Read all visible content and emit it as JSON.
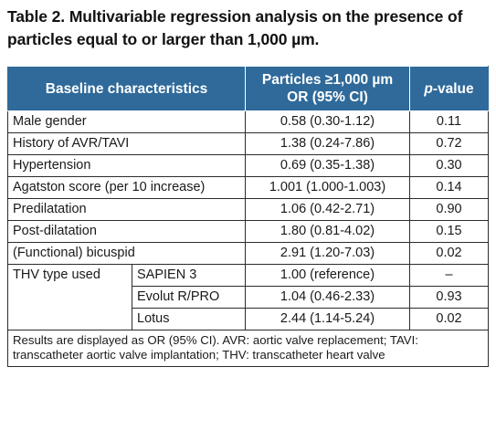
{
  "caption": "Table 2. Multivariable regression analysis on the presence of particles equal to or larger than 1,000 µm.",
  "header": {
    "col1": "Baseline characteristics",
    "col2_line1": "Particles ≥1,000 µm",
    "col2_line2": "OR (95% CI)",
    "col3_italic": "p",
    "col3_rest": "-value"
  },
  "rows": [
    {
      "label": "Male gender",
      "or": "0.58 (0.30-1.12)",
      "p": "0.11"
    },
    {
      "label": "History of AVR/TAVI",
      "or": "1.38 (0.24-7.86)",
      "p": "0.72"
    },
    {
      "label": "Hypertension",
      "or": "0.69 (0.35-1.38)",
      "p": "0.30"
    },
    {
      "label": "Agatston score (per 10 increase)",
      "or": "1.001 (1.000-1.003)",
      "p": "0.14"
    },
    {
      "label": "Predilatation",
      "or": "1.06 (0.42-2.71)",
      "p": "0.90"
    },
    {
      "label": "Post-dilatation",
      "or": "1.80 (0.81-4.02)",
      "p": "0.15"
    },
    {
      "label": "(Functional) bicuspid",
      "or": "2.91 (1.20-7.03)",
      "p": "0.02"
    }
  ],
  "thv": {
    "label": "THV type used",
    "items": [
      {
        "label": "SAPIEN 3",
        "or": "1.00 (reference)",
        "p": "–"
      },
      {
        "label": "Evolut R/PRO",
        "or": "1.04 (0.46-2.33)",
        "p": "0.93"
      },
      {
        "label": "Lotus",
        "or": "2.44 (1.14-5.24)",
        "p": "0.02"
      }
    ]
  },
  "footnote": "Results are displayed as OR (95% CI). AVR: aortic valve replacement; TAVI: transcatheter aortic valve implantation; THV: transcatheter heart valve",
  "colors": {
    "header_bg": "#2f6a9a",
    "header_text": "#ffffff",
    "border": "#2c2c2c"
  }
}
